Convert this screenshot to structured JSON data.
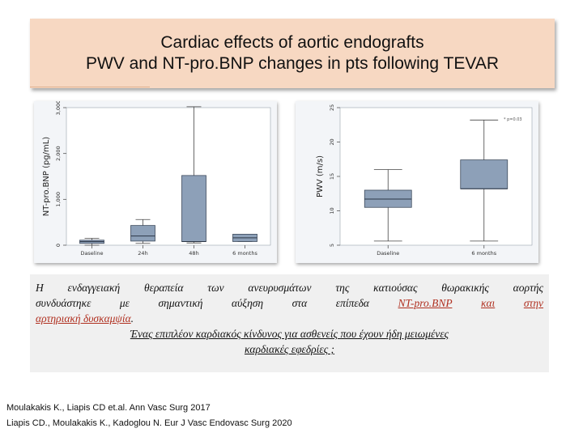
{
  "title": {
    "line1": "Cardiac effects of aortic endografts",
    "line2": "PWV and NT-pro.BNP changes in pts following TEVAR"
  },
  "chart_data": [
    {
      "type": "box",
      "ylabel": "NT-pro.BNP (pg/mL)",
      "ylim": [
        0,
        3000
      ],
      "yticks": [
        "0",
        "1,000",
        "2,000",
        "3,000"
      ],
      "categories": [
        "Daseline",
        "24h",
        "48h",
        "6 months"
      ],
      "boxes": [
        {
          "min": 0,
          "q1": 40,
          "median": 80,
          "q3": 110,
          "max": 150
        },
        {
          "min": 40,
          "q1": 90,
          "median": 200,
          "q3": 430,
          "max": 560
        },
        {
          "min": 50,
          "q1": 80,
          "median": 80,
          "q3": 1520,
          "max": 3020
        },
        {
          "min": 80,
          "q1": 80,
          "median": 160,
          "q3": 240,
          "max": 240
        }
      ],
      "color": "#8da0b8"
    },
    {
      "type": "box",
      "ylabel": "PWV (m/s)",
      "ylim": [
        5,
        25
      ],
      "yticks": [
        "5",
        "10",
        "15",
        "20",
        "25"
      ],
      "categories": [
        "Daseline",
        "6 months"
      ],
      "boxes": [
        {
          "min": 5.6,
          "q1": 10.5,
          "median": 11.7,
          "q3": 13,
          "max": 16
        },
        {
          "min": 5.6,
          "q1": 13.2,
          "median": 13.2,
          "q3": 17.4,
          "max": 23.2
        }
      ],
      "annotation": "* p=0.03",
      "color": "#8da0b8"
    }
  ],
  "paragraph": {
    "line1": "Η ενδαγγειακή θεραπεία των ανευρυσμάτων της κατιούσας θωρακικής αορτής",
    "line2_pre": "συνδυάστηκε με σημαντική αύξηση στα επίπεδα ",
    "line2_link1": "NT-pro.BNP",
    "line2_link2": "και",
    "line2_link3": "στην",
    "line3_link": "αρτηριακή δυσκαμψία",
    "line3_end": ".",
    "center1": "Ένας επιπλέον καρδιακός κίνδυνος για ασθενείς που έχουν ήδη μειωμένες",
    "center2": "καρδιακές εφεδρίες ;"
  },
  "references": {
    "ref1": "Moulakakis K., Liapis CD et.al. Ann Vasc Surg 2017",
    "ref2": "Liapis CD., Moulakakis K., Kadoglou N. Eur J Vasc Endovasc Surg 2020"
  }
}
